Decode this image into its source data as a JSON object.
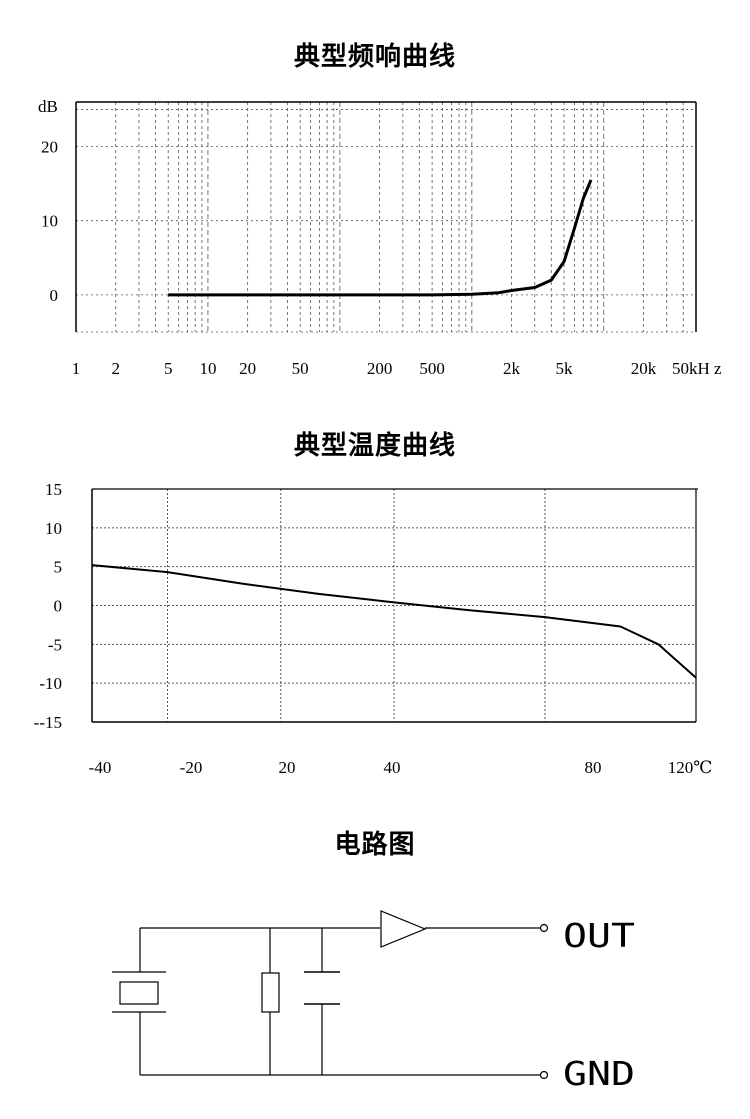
{
  "titles": {
    "freq": "典型频响曲线",
    "temp": "典型温度曲线",
    "circuit": "电路图"
  },
  "chart_data": [
    {
      "type": "line",
      "title": "典型频响曲线",
      "ylabel": "dB",
      "xscale": "log",
      "xlim": [
        1,
        50000
      ],
      "ylim": [
        -5,
        26
      ],
      "yticks": [
        "20",
        "10",
        "0"
      ],
      "xtick_labels": [
        "1",
        "2",
        "5",
        "10",
        "20",
        "50",
        "200",
        "500",
        "2k",
        "5k",
        "20k",
        "50kH z"
      ],
      "grid": "dashed vertical log grid, dotted horizontal",
      "series": [
        {
          "x": [
            5,
            10,
            50,
            200,
            500,
            1000,
            1600,
            2000,
            3000,
            4000,
            5000,
            6000,
            7000,
            8000
          ],
          "y": [
            0,
            0,
            0,
            0,
            0,
            0.1,
            0.3,
            0.6,
            1.0,
            2.0,
            4.5,
            9.0,
            13.0,
            15.5
          ]
        }
      ]
    },
    {
      "type": "line",
      "title": "典型温度曲线",
      "xlim": [
        -40,
        120
      ],
      "ylim": [
        -15,
        15
      ],
      "yticks": [
        "15",
        "10",
        "5",
        "0",
        "-5",
        "-10",
        "--15"
      ],
      "xtick_labels": [
        "-40",
        "-20",
        "20",
        "40",
        "80",
        "120℃"
      ],
      "grid": "dotted",
      "series": [
        {
          "x": [
            -40,
            -20,
            0,
            20,
            40,
            60,
            80,
            100,
            110,
            120
          ],
          "y": [
            5.2,
            4.3,
            2.8,
            1.5,
            0.4,
            -0.6,
            -1.5,
            -2.7,
            -5.0,
            -9.3
          ]
        }
      ]
    }
  ],
  "circuit": {
    "out_label": "OUT",
    "gnd_label": "GND"
  }
}
